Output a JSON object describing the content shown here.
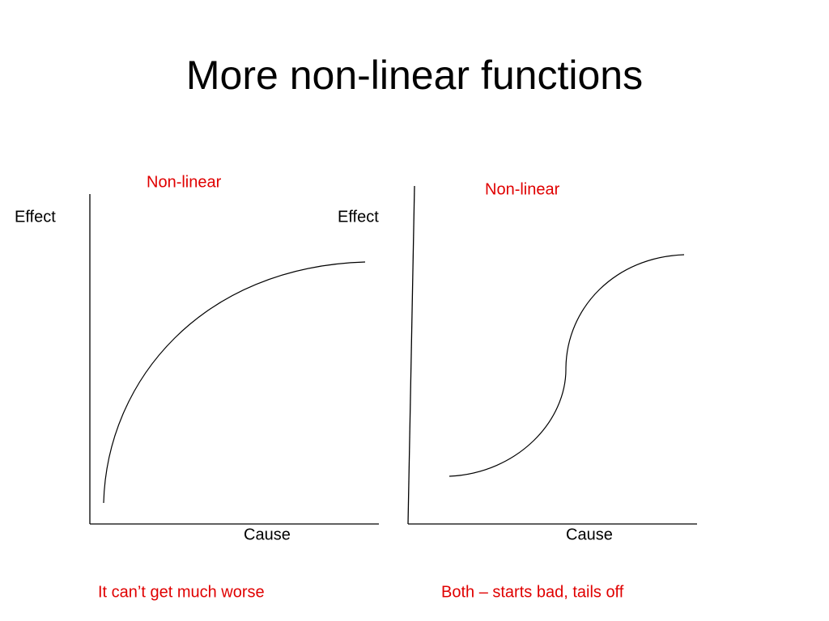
{
  "title": "More non-linear functions",
  "panels": [
    {
      "label": "Non-linear",
      "y_label": "Effect",
      "x_label": "Cause",
      "caption": "It can’t get much worse"
    },
    {
      "label": "Non-linear",
      "y_label": "Effect",
      "x_label": "Cause",
      "caption": "Both – starts bad, tails off"
    }
  ]
}
